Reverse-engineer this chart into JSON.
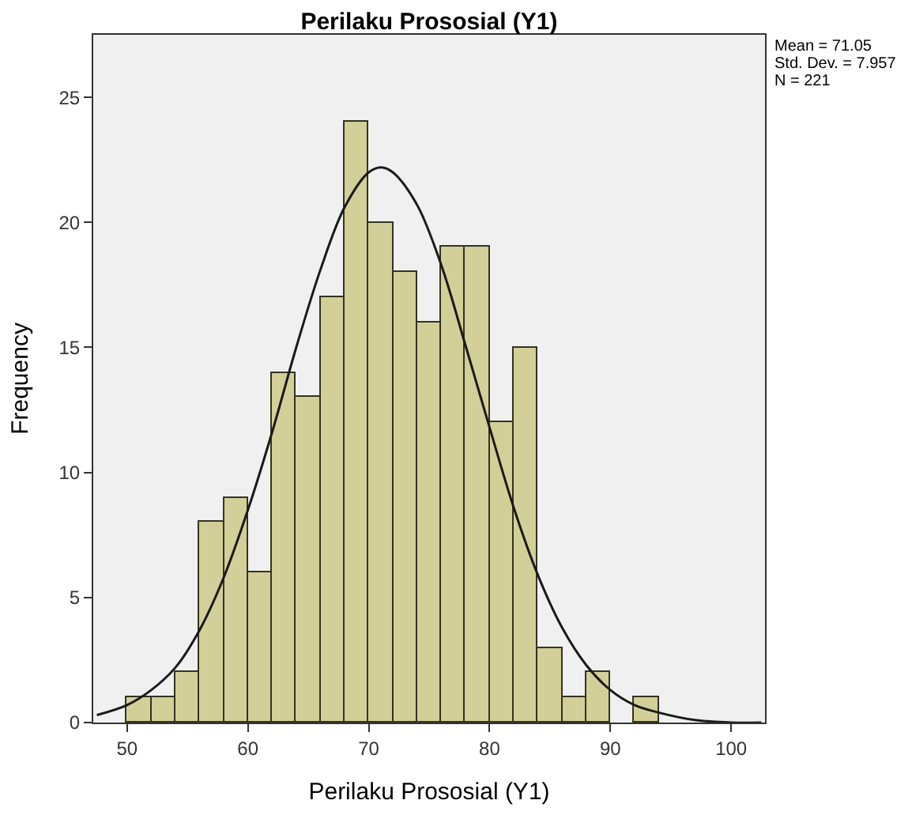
{
  "chart_data": {
    "type": "histogram",
    "title": "Perilaku Prososial (Y1)",
    "xlabel": "Perilaku Prososial (Y1)",
    "ylabel": "Frequency",
    "bins": [
      50,
      52,
      54,
      56,
      58,
      60,
      62,
      64,
      66,
      68,
      70,
      72,
      74,
      76,
      78,
      80,
      82,
      84,
      86,
      88,
      90,
      92,
      94
    ],
    "values": [
      1,
      1,
      2,
      8,
      9,
      6,
      14,
      13,
      17,
      24,
      20,
      18,
      16,
      19,
      19,
      12,
      15,
      3,
      1,
      2,
      0,
      1
    ],
    "color": "#d3cf98",
    "series": [
      {
        "type": "line",
        "color": "#1a1a1a",
        "x": [
          47.5,
          50,
          52,
          54,
          56,
          58,
          60,
          62,
          64,
          66,
          68,
          70,
          71.05,
          72,
          74,
          76,
          78,
          80,
          82,
          84,
          86,
          88,
          90,
          92,
          94,
          97,
          100,
          102.5
        ],
        "values": [
          0.3,
          0.7,
          1.3,
          2.2,
          3.7,
          5.8,
          8.5,
          11.6,
          15.0,
          18.1,
          20.6,
          22.0,
          22.2,
          22.0,
          20.7,
          18.3,
          15.1,
          11.8,
          8.6,
          5.9,
          3.8,
          2.3,
          1.3,
          0.7,
          0.4,
          0.1,
          0.0,
          0.0
        ]
      }
    ],
    "xlim": [
      47.2,
      102.8
    ],
    "xticks": [
      50,
      60,
      70,
      80,
      90,
      100
    ],
    "ylim": [
      0,
      27.5
    ],
    "yticks": [
      0,
      5,
      10,
      15,
      20,
      25
    ],
    "grid": false,
    "annotations": [
      "Mean = 71.05",
      "Std. Dev. = 7.957",
      "N = 221"
    ]
  }
}
